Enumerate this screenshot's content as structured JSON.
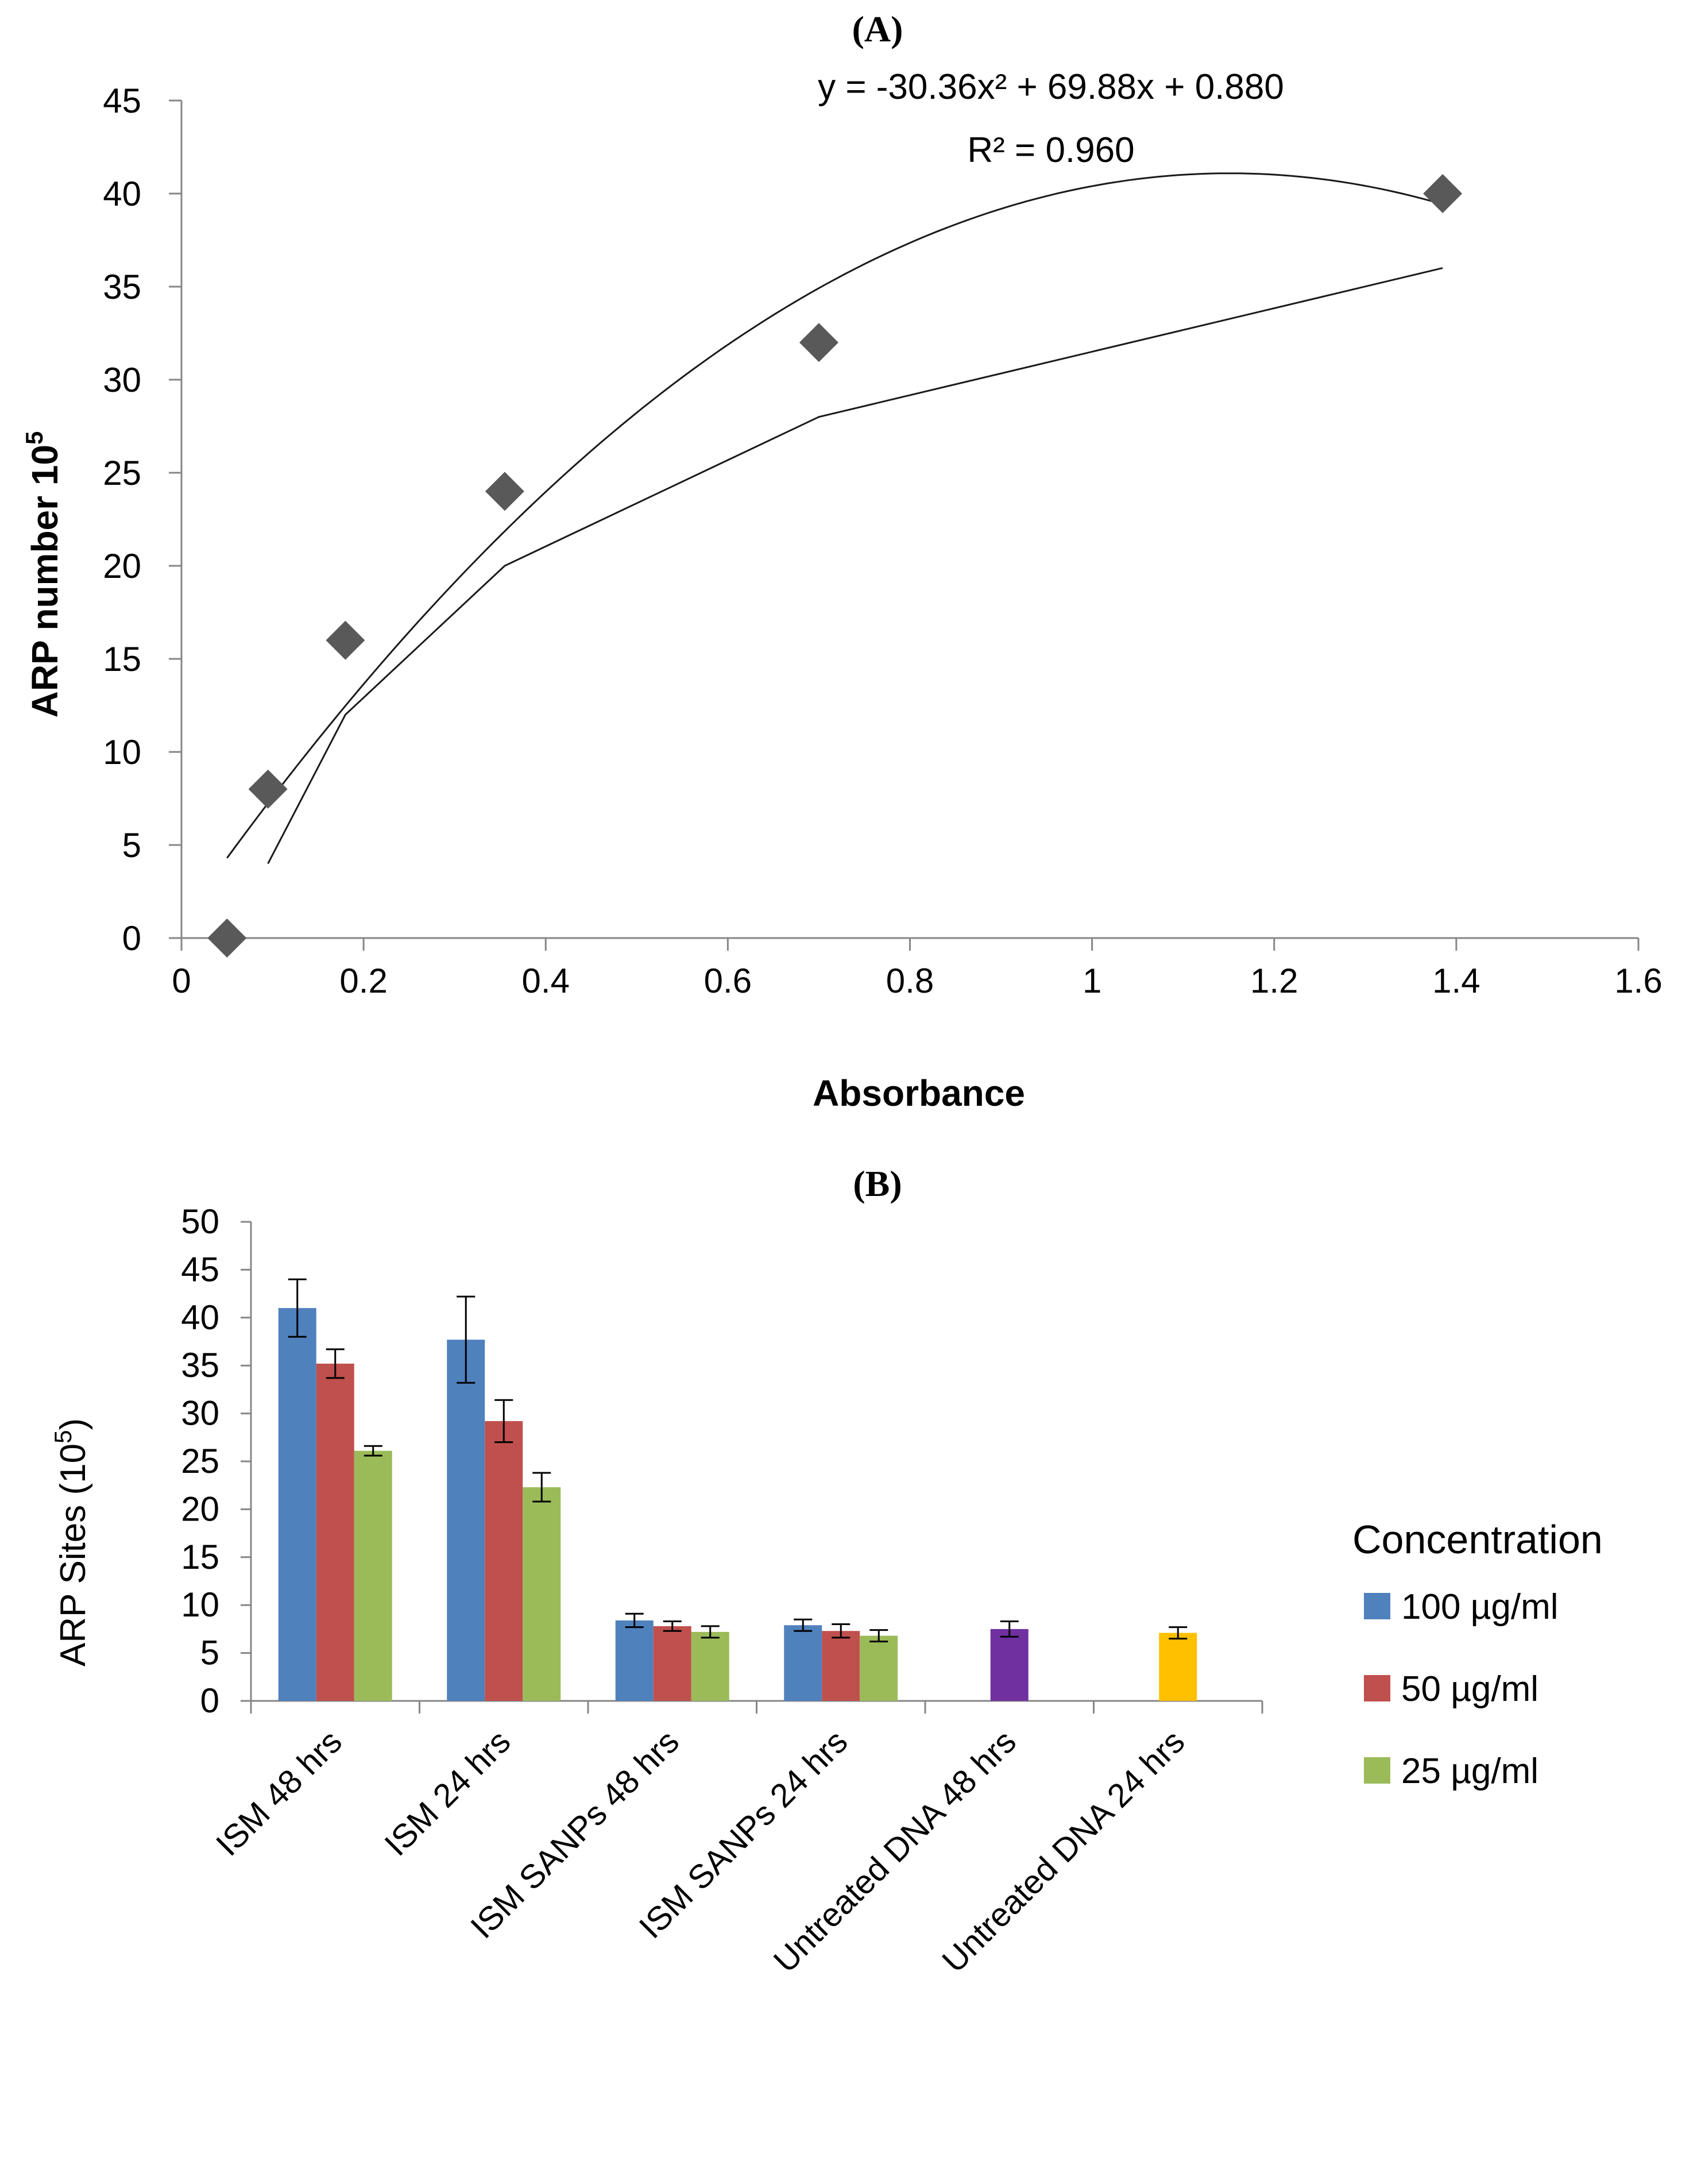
{
  "chart_data": [
    {
      "panel": "(A)",
      "type": "scatter",
      "title": "",
      "xlabel": "Absorbance",
      "ylabel": "ARP number 10",
      "ylabel_sup": "5",
      "xlim": [
        0,
        1.6
      ],
      "ylim": [
        0,
        45
      ],
      "xticks": [
        "0",
        "0.2",
        "0.4",
        "0.6",
        "0.8",
        "1",
        "1.2",
        "1.4",
        "1.6"
      ],
      "yticks": [
        "0",
        "5",
        "10",
        "15",
        "20",
        "25",
        "30",
        "35",
        "40",
        "45"
      ],
      "points": [
        {
          "x": 0.05,
          "y": 0
        },
        {
          "x": 0.095,
          "y": 8
        },
        {
          "x": 0.18,
          "y": 16
        },
        {
          "x": 0.355,
          "y": 24
        },
        {
          "x": 0.7,
          "y": 32
        },
        {
          "x": 1.385,
          "y": 40
        }
      ],
      "line": [
        {
          "x": 0.095,
          "y": 4
        },
        {
          "x": 0.18,
          "y": 12
        },
        {
          "x": 0.355,
          "y": 20
        },
        {
          "x": 0.7,
          "y": 28
        },
        {
          "x": 1.385,
          "y": 36
        }
      ],
      "trendline": {
        "type": "polynomial",
        "a": -30.36,
        "b": 69.88,
        "c": 0.88,
        "xmin": 0.05,
        "xmax": 1.385
      },
      "equation": "y = -30.36x² + 69.88x + 0.880",
      "r2": "R² = 0.960",
      "marker_color": "#595959"
    },
    {
      "panel": "(B)",
      "type": "bar",
      "title": "",
      "xlabel": "",
      "ylabel": "ARP Sites (10",
      "ylabel_sup": "5",
      "ylabel_end": ")",
      "ylim": [
        0,
        50
      ],
      "yticks": [
        "0",
        "5",
        "10",
        "15",
        "20",
        "25",
        "30",
        "35",
        "40",
        "45",
        "50"
      ],
      "categories": [
        "ISM 48 hrs",
        "ISM 24 hrs",
        "ISM SANPs 48 hrs",
        "ISM SANPs 24 hrs",
        "Untreated DNA 48 hrs",
        "Untreated DNA 24 hrs"
      ],
      "series": [
        {
          "name": "100 µg/ml",
          "color": "#4F81BD",
          "values": [
            41,
            37.7,
            8.4,
            7.9,
            null,
            null
          ],
          "errors": [
            3,
            4.5,
            0.7,
            0.6,
            null,
            null
          ]
        },
        {
          "name": "50 µg/ml",
          "color": "#C0504D",
          "values": [
            35.2,
            29.2,
            7.8,
            7.3,
            null,
            null
          ],
          "errors": [
            1.5,
            2.2,
            0.5,
            0.7,
            null,
            null
          ]
        },
        {
          "name": "25 µg/ml",
          "color": "#9BBB59",
          "values": [
            26.1,
            22.3,
            7.2,
            6.8,
            null,
            null
          ],
          "errors": [
            0.5,
            1.5,
            0.6,
            0.6,
            null,
            null
          ]
        }
      ],
      "extra_bars": [
        {
          "category_index": 4,
          "value": 7.5,
          "error": 0.8,
          "color": "#7030A0"
        },
        {
          "category_index": 5,
          "value": 7.1,
          "error": 0.6,
          "color": "#FFC000"
        }
      ],
      "legend_title": "Concentration",
      "legend_position": "right"
    }
  ]
}
